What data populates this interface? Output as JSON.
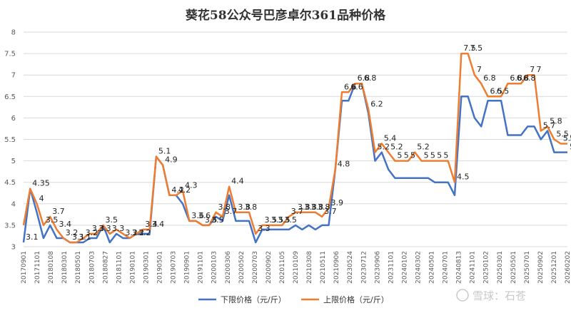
{
  "chart_data": {
    "type": "line",
    "title": "葵花58公众号巴彦卓尔361品种价格",
    "ylim": [
      3,
      8
    ],
    "yticks": [
      "3",
      "3.5",
      "4",
      "4.5",
      "5",
      "5.5",
      "6",
      "6.5",
      "7",
      "7.5",
      "8"
    ],
    "grid": true,
    "legend_position": "bottom",
    "x_tick_labels": [
      "20170901",
      "20171101",
      "20180108",
      "20180301",
      "20180501",
      "20180703",
      "20180827",
      "20181101",
      "20190101",
      "20190301",
      "20190501",
      "20190703",
      "20190901",
      "20191101",
      "20200103",
      "20200306",
      "20200502",
      "20200703",
      "20200902",
      "20201105",
      "20210109",
      "20210308",
      "20210511",
      "20210906",
      "20230524",
      "20230712",
      "20230906",
      "20231101",
      "20240102",
      "20240302",
      "20240501",
      "20240701",
      "20240813",
      "20241101",
      "20250102",
      "20250301",
      "20250501",
      "20250701",
      "20250902",
      "20251201",
      "20260202"
    ],
    "series": [
      {
        "name": "下限价格（元/斤）",
        "color": "#4472C4",
        "values": [
          3.1,
          4.35,
          3.8,
          3.2,
          3.5,
          3.2,
          3.2,
          3.1,
          3.1,
          3.1,
          3.2,
          3.2,
          3.5,
          3.1,
          3.3,
          3.2,
          3.2,
          3.3,
          3.3,
          3.3,
          5.1,
          4.9,
          4.2,
          4.2,
          4.0,
          3.6,
          3.6,
          3.5,
          3.5,
          3.7,
          3.6,
          4.2,
          3.6,
          3.6,
          3.6,
          3.1,
          3.4,
          3.4,
          3.4,
          3.4,
          3.4,
          3.5,
          3.4,
          3.5,
          3.4,
          3.5,
          3.5,
          4.8,
          6.4,
          6.4,
          6.8,
          6.8,
          6.1,
          5.0,
          5.2,
          4.8,
          4.6,
          4.6,
          4.6,
          4.6,
          4.6,
          4.6,
          4.5,
          4.5,
          4.5,
          4.2,
          6.5,
          6.5,
          6.0,
          5.8,
          6.4,
          6.4,
          6.4,
          5.6,
          5.6,
          5.6,
          5.8,
          5.8,
          5.5,
          5.7,
          5.2,
          5.2,
          5.2
        ]
      },
      {
        "name": "上限价格（元/斤）",
        "color": "#ED7D31",
        "values": [
          3.5,
          4.35,
          4.0,
          3.5,
          3.7,
          3.4,
          3.2,
          3.1,
          3.1,
          3.2,
          3.3,
          3.3,
          3.5,
          3.3,
          3.4,
          3.3,
          3.2,
          3.3,
          3.4,
          3.4,
          5.1,
          4.9,
          4.2,
          4.2,
          4.3,
          3.6,
          3.6,
          3.5,
          3.5,
          3.8,
          3.7,
          4.4,
          3.8,
          3.8,
          3.8,
          3.3,
          3.5,
          3.5,
          3.5,
          3.5,
          3.7,
          3.8,
          3.8,
          3.8,
          3.8,
          3.7,
          3.9,
          4.8,
          6.6,
          6.6,
          6.8,
          6.8,
          6.2,
          5.2,
          5.4,
          5.2,
          5.0,
          5.0,
          5.0,
          5.2,
          5.0,
          5.0,
          5.0,
          5.0,
          5.0,
          4.5,
          7.5,
          7.5,
          7.0,
          6.8,
          6.5,
          6.5,
          6.5,
          6.8,
          6.8,
          6.8,
          7.0,
          7.0,
          5.7,
          5.8,
          5.5,
          5.4,
          5.4
        ]
      }
    ],
    "data_labels": [
      "3.1",
      "3.5",
      "4.35",
      "4",
      "3.4",
      "3.7",
      "3.2",
      "3.2",
      "3.1",
      "3.1",
      "3.3",
      "3.3",
      "3.5",
      "3.2",
      "3.2",
      "3.2",
      "3.3",
      "3.4",
      "3.4",
      "5.1",
      "4.9",
      "4.2",
      "4.2",
      "4.3",
      "3.6",
      "3.6",
      "3.5",
      "3.5",
      "3.8",
      "3.7",
      "4.4",
      "3.8",
      "3.8",
      "3.3",
      "3.5",
      "3.5",
      "3.5",
      "3.5",
      "3.7",
      "3.8",
      "3.8",
      "3.8",
      "3.8",
      "3.7",
      "3.9",
      "4.8",
      "6.6",
      "6.6",
      "6.8",
      "6.8",
      "6.2",
      "5.2",
      "5.4",
      "5.2",
      "5",
      "5",
      "5",
      "5.2",
      "5",
      "5",
      "5",
      "5",
      "4.5",
      "7.5",
      "7.5",
      "7",
      "6.8",
      "6.5",
      "6.5",
      "6.8",
      "6.8",
      "6.8",
      "7",
      "7",
      "5.7",
      "5.8",
      "5.5",
      "5.4",
      "5.4",
      "5.2"
    ]
  },
  "watermark": "雪球：石苍"
}
